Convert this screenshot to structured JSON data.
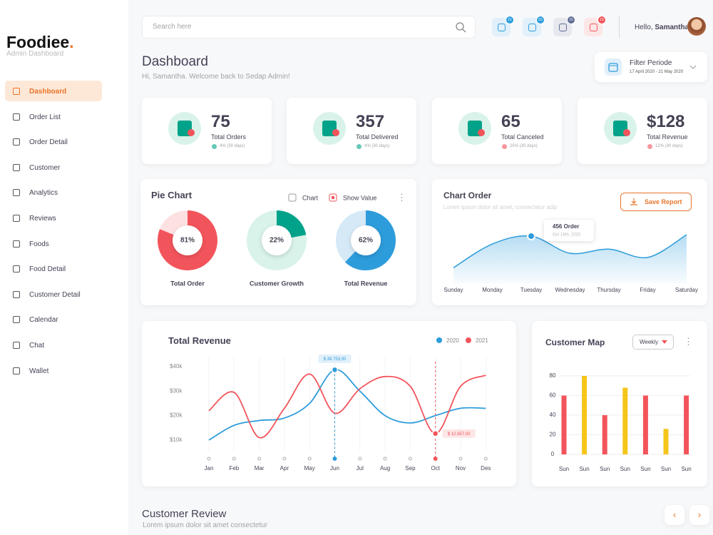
{
  "brand": {
    "name": "Foodiee",
    "dot": ".",
    "subtitle": "Admin Dashboard"
  },
  "search_placeholder": "Search here",
  "badges": [
    "21",
    "53",
    "15",
    "19"
  ],
  "greeting": "Hello,",
  "user": "Samantha",
  "nav": [
    "Dashboard",
    "Order List",
    "Order Detail",
    "Customer",
    "Analytics",
    "Reviews",
    "Foods",
    "Food Detail",
    "Customer Detail",
    "Calendar",
    "Chat",
    "Wallet"
  ],
  "header": {
    "title": "Dashboard",
    "subtitle": "Hi, Samantha. Welcome back  to Sedap Admin!"
  },
  "filter": {
    "title": "Filter Periode",
    "range": "17 April 2020 - 21 May 2020"
  },
  "stats": [
    {
      "value": "75",
      "label": "Total Orders",
      "change": "4% (30 days)",
      "trend": "up"
    },
    {
      "value": "357",
      "label": "Total Delivered",
      "change": "4% (30 days)",
      "trend": "up"
    },
    {
      "value": "65",
      "label": "Total Canceled",
      "change": "25% (30 days)",
      "trend": "down"
    },
    {
      "value": "$128",
      "label": "Total Revenue",
      "change": "12% (30 days)",
      "trend": "down"
    }
  ],
  "pie_chart": {
    "type": "pie",
    "title": "Pie Chart",
    "options": [
      {
        "label": "Chart",
        "checked": false
      },
      {
        "label": "Show Value",
        "checked": true
      }
    ],
    "items": [
      {
        "label": "Total Order",
        "value": 81,
        "value_label": "81%",
        "color": "#f2545b",
        "track": "#fde0e0"
      },
      {
        "label": "Customer Growth",
        "value": 22,
        "value_label": "22%",
        "color": "#00a389",
        "track": "#d9f3ea"
      },
      {
        "label": "Total Revenue",
        "value": 62,
        "value_label": "62%",
        "color": "#2d9cdb",
        "track": "#d5e9f7"
      }
    ]
  },
  "chart_order": {
    "type": "area",
    "title": "Chart Order",
    "subtitle": "Lorem ipsum dolor sit amet, consectetur adip",
    "button": "Save Report",
    "categories": [
      "Sunday",
      "Monday",
      "Tuesday",
      "Wednesday",
      "Thursday",
      "Friday",
      "Saturday"
    ],
    "values": [
      150,
      380,
      456,
      290,
      330,
      250,
      470
    ],
    "color": "#2d9cdb",
    "tooltip": {
      "index": 2,
      "title": "456 Order",
      "date": "Oct 18th, 2020"
    }
  },
  "total_revenue": {
    "type": "line",
    "title": "Total Revenue",
    "categories": [
      "Jan",
      "Feb",
      "Mar",
      "Apr",
      "May",
      "Jun",
      "Jul",
      "Aug",
      "Sep",
      "Oct",
      "Nov",
      "Des"
    ],
    "series": [
      {
        "name": "2020",
        "color": "#2d9cdb",
        "values": [
          10000,
          16000,
          18000,
          19000,
          25000,
          38753,
          30000,
          20000,
          17000,
          20000,
          23000,
          23000
        ],
        "value_labels": [
          null,
          null,
          null,
          null,
          null,
          "$ 38.753,00",
          null,
          null,
          null,
          null,
          null,
          null
        ]
      },
      {
        "name": "2021",
        "color": "#f2545b",
        "values": [
          22000,
          29500,
          11000,
          23000,
          37000,
          21000,
          31000,
          36000,
          32000,
          12657,
          32000,
          36500
        ],
        "value_labels": [
          null,
          null,
          null,
          null,
          null,
          null,
          null,
          null,
          null,
          "$ 12.657,00",
          null,
          null
        ]
      }
    ],
    "ylim": [
      5000,
      45000
    ],
    "yticks": [
      {
        "value": 10000,
        "label": "$10k"
      },
      {
        "value": 20000,
        "label": "$20k"
      },
      {
        "value": 30000,
        "label": "$30k"
      },
      {
        "value": 40000,
        "label": "$40k"
      }
    ]
  },
  "customer_map": {
    "type": "bar",
    "title": "Customer Map",
    "dropdown": "Weekly",
    "categories": [
      "Sun",
      "Sun",
      "Sun",
      "Sun",
      "Sun",
      "Sun",
      "Sun"
    ],
    "values": [
      60,
      80,
      40,
      68,
      60,
      26,
      60
    ],
    "colors": [
      "#f2545b",
      "#f5c51b",
      "#f2545b",
      "#f5c51b",
      "#f2545b",
      "#f5c51b",
      "#f2545b"
    ],
    "ylim": [
      0,
      88
    ],
    "yticks": [
      0,
      20,
      40,
      60,
      80
    ],
    "grid": true
  },
  "customer_review": {
    "title": "Customer Review",
    "subtitle": "Lorem ipsum dolor sit amet consectetur"
  }
}
